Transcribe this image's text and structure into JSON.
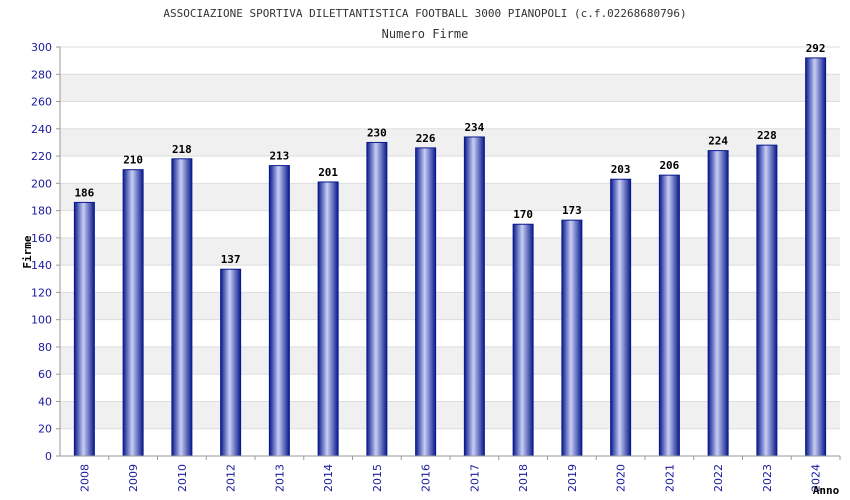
{
  "chart_data": {
    "type": "bar",
    "title": "ASSOCIAZIONE SPORTIVA DILETTANTISTICA FOOTBALL 3000 PIANOPOLI (c.f.02268680796)",
    "subtitle": "Numero Firme",
    "xlabel": "Anno",
    "ylabel": "Firme",
    "ylim": [
      0,
      300
    ],
    "yticks": [
      0,
      20,
      40,
      60,
      80,
      100,
      120,
      140,
      160,
      180,
      200,
      220,
      240,
      260,
      280,
      300
    ],
    "categories": [
      "2008",
      "2009",
      "2010",
      "2012",
      "2013",
      "2014",
      "2015",
      "2016",
      "2017",
      "2018",
      "2019",
      "2020",
      "2021",
      "2022",
      "2023",
      "2024"
    ],
    "values": [
      186,
      210,
      218,
      137,
      213,
      201,
      230,
      226,
      234,
      170,
      173,
      203,
      206,
      224,
      228,
      292
    ],
    "grid": true,
    "colors": {
      "bar_dark": "#0a1a8c",
      "bar_light": "#b8c0f0",
      "grid_band": "#f0f0f0"
    }
  }
}
